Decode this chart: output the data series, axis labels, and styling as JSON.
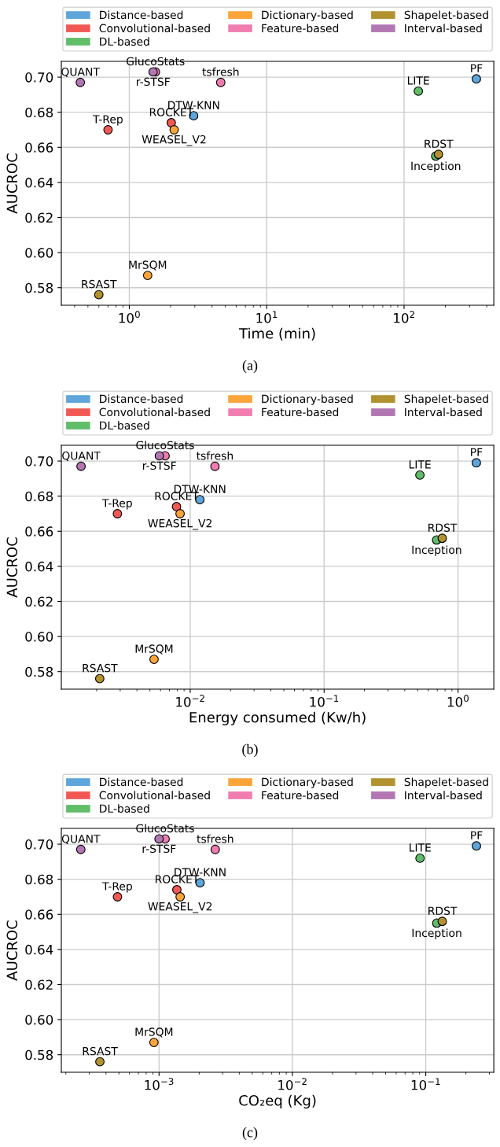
{
  "chart_data": [
    {
      "type": "scatter",
      "xlabel": "Time (min)",
      "ylabel": "AUCROC",
      "log": "x",
      "grid": true,
      "legend": "top",
      "marker": "circle",
      "xlim": [
        0.32,
        450
      ],
      "xticks": [
        {
          "value": 1,
          "label": "10$^{0}$"
        },
        {
          "value": 10,
          "label": "10$^{1}$"
        },
        {
          "value": 100,
          "label": "10$^{2}$"
        }
      ],
      "ylim": [
        0.57,
        0.709
      ],
      "yticks": [
        {
          "value": 0.58,
          "label": "0.58"
        },
        {
          "value": 0.6,
          "label": "0.60"
        },
        {
          "value": 0.62,
          "label": "0.62"
        },
        {
          "value": 0.64,
          "label": "0.64"
        },
        {
          "value": 0.66,
          "label": "0.66"
        },
        {
          "value": 0.68,
          "label": "0.68"
        },
        {
          "value": 0.7,
          "label": "0.70"
        }
      ],
      "series": [
        {
          "name": "Distance-based",
          "color": "#5da5da",
          "x": [
            2.94,
            336
          ],
          "values": [
            0.678,
            0.699
          ]
        },
        {
          "name": "Convolutional-based",
          "color": "#f15854",
          "x": [
            2.02,
            0.7
          ],
          "values": [
            0.674,
            0.67
          ]
        },
        {
          "name": "DL-based",
          "color": "#60bd68",
          "x": [
            127,
            170
          ],
          "values": [
            0.692,
            0.655
          ]
        },
        {
          "name": "Dictionary-based",
          "color": "#faa43a",
          "x": [
            2.12,
            1.36
          ],
          "values": [
            0.67,
            0.587
          ]
        },
        {
          "name": "Feature-based",
          "color": "#f17cb0",
          "x": [
            1.55,
            4.63
          ],
          "values": [
            0.703,
            0.697
          ]
        },
        {
          "name": "Shapelet-based",
          "color": "#b2912f",
          "x": [
            178,
            0.6
          ],
          "values": [
            0.656,
            0.576
          ]
        },
        {
          "name": "Interval-based",
          "color": "#b276b2",
          "x": [
            0.44,
            1.49
          ],
          "values": [
            0.697,
            0.703
          ]
        }
      ],
      "annotations": [
        {
          "text": "QUANT",
          "x": 0.44,
          "y": 0.697
        },
        {
          "text": "GlucoStats",
          "x": 1.55,
          "y": 0.703
        },
        {
          "text": "r-STSF",
          "x": 1.49,
          "y": 0.703
        },
        {
          "text": "tsfresh",
          "x": 4.63,
          "y": 0.697
        },
        {
          "text": "PF",
          "x": 336,
          "y": 0.699
        },
        {
          "text": "LITE",
          "x": 127,
          "y": 0.692
        },
        {
          "text": "DTW-KNN",
          "x": 2.94,
          "y": 0.678
        },
        {
          "text": "ROCKET",
          "x": 2.02,
          "y": 0.674
        },
        {
          "text": "WEASEL_V2",
          "x": 2.12,
          "y": 0.67
        },
        {
          "text": "T-Rep",
          "x": 0.7,
          "y": 0.67
        },
        {
          "text": "RDST",
          "x": 178,
          "y": 0.656
        },
        {
          "text": "Inception",
          "x": 170,
          "y": 0.655
        },
        {
          "text": "MrSQM",
          "x": 1.36,
          "y": 0.587
        },
        {
          "text": "RSAST",
          "x": 0.6,
          "y": 0.576
        },
        "(a)"
      ]
    },
    {
      "type": "scatter",
      "xlabel": "Energy consumed (Kw/h)",
      "ylabel": "AUCROC",
      "log": "x",
      "grid": true,
      "legend": "top",
      "marker": "circle",
      "xlim": [
        0.00109,
        1.85
      ],
      "xticks": [
        {
          "value": 0.01,
          "label": "10$^{−2}$"
        },
        {
          "value": 0.1,
          "label": "10$^{−1}$"
        },
        {
          "value": 1,
          "label": "10$^{0}$"
        }
      ],
      "ylim": [
        0.57,
        0.709
      ],
      "yticks": [
        {
          "value": 0.58,
          "label": "0.58"
        },
        {
          "value": 0.6,
          "label": "0.60"
        },
        {
          "value": 0.62,
          "label": "0.62"
        },
        {
          "value": 0.64,
          "label": "0.64"
        },
        {
          "value": 0.66,
          "label": "0.66"
        },
        {
          "value": 0.68,
          "label": "0.68"
        },
        {
          "value": 0.7,
          "label": "0.70"
        }
      ],
      "series": [
        {
          "name": "Distance-based",
          "color": "#5da5da",
          "x": [
            0.0118,
            1.37
          ],
          "values": [
            0.678,
            0.699
          ]
        },
        {
          "name": "Convolutional-based",
          "color": "#f15854",
          "x": [
            0.0079,
            0.00286
          ],
          "values": [
            0.674,
            0.67
          ]
        },
        {
          "name": "DL-based",
          "color": "#60bd68",
          "x": [
            0.519,
            0.692
          ],
          "values": [
            0.692,
            0.655
          ]
        },
        {
          "name": "Dictionary-based",
          "color": "#faa43a",
          "x": [
            0.0084,
            0.00537
          ],
          "values": [
            0.67,
            0.587
          ]
        },
        {
          "name": "Feature-based",
          "color": "#f17cb0",
          "x": [
            0.00649,
            0.0153
          ],
          "values": [
            0.703,
            0.697
          ]
        },
        {
          "name": "Shapelet-based",
          "color": "#b2912f",
          "x": [
            0.762,
            0.00211
          ],
          "values": [
            0.656,
            0.576
          ]
        },
        {
          "name": "Interval-based",
          "color": "#b276b2",
          "x": [
            0.00153,
            0.00588
          ],
          "values": [
            0.697,
            0.703
          ]
        }
      ],
      "annotations": [
        {
          "text": "QUANT",
          "x": 0.00153,
          "y": 0.697
        },
        {
          "text": "GlucoStats",
          "x": 0.00649,
          "y": 0.703
        },
        {
          "text": "r-STSF",
          "x": 0.00588,
          "y": 0.703
        },
        {
          "text": "tsfresh",
          "x": 0.0153,
          "y": 0.697
        },
        {
          "text": "PF",
          "x": 1.37,
          "y": 0.699
        },
        {
          "text": "LITE",
          "x": 0.519,
          "y": 0.692
        },
        {
          "text": "DTW-KNN",
          "x": 0.0118,
          "y": 0.678
        },
        {
          "text": "ROCKET",
          "x": 0.0079,
          "y": 0.674
        },
        {
          "text": "WEASEL_V2",
          "x": 0.0084,
          "y": 0.67
        },
        {
          "text": "T-Rep",
          "x": 0.00286,
          "y": 0.67
        },
        {
          "text": "RDST",
          "x": 0.762,
          "y": 0.656
        },
        {
          "text": "Inception",
          "x": 0.692,
          "y": 0.655
        },
        {
          "text": "MrSQM",
          "x": 0.00537,
          "y": 0.587
        },
        {
          "text": "RSAST",
          "x": 0.00211,
          "y": 0.576
        },
        "(b)"
      ]
    },
    {
      "type": "scatter",
      "xlabel": "CO₂eq (Kg)",
      "ylabel": "AUCROC",
      "log": "x",
      "grid": true,
      "legend": "top",
      "marker": "circle",
      "xlim": [
        0.000185,
        0.324
      ],
      "xticks": [
        {
          "value": 0.001,
          "label": "10$^{−3}$"
        },
        {
          "value": 0.01,
          "label": "10$^{−2}$"
        },
        {
          "value": 0.1,
          "label": "10$^{−1}$"
        }
      ],
      "ylim": [
        0.57,
        0.709
      ],
      "yticks": [
        {
          "value": 0.58,
          "label": "0.58"
        },
        {
          "value": 0.6,
          "label": "0.60"
        },
        {
          "value": 0.62,
          "label": "0.62"
        },
        {
          "value": 0.64,
          "label": "0.64"
        },
        {
          "value": 0.66,
          "label": "0.66"
        },
        {
          "value": 0.68,
          "label": "0.68"
        },
        {
          "value": 0.7,
          "label": "0.70"
        }
      ],
      "series": [
        {
          "name": "Distance-based",
          "color": "#5da5da",
          "x": [
            0.00203,
            0.24
          ],
          "values": [
            0.678,
            0.699
          ]
        },
        {
          "name": "Convolutional-based",
          "color": "#f15854",
          "x": [
            0.00136,
            0.000488
          ],
          "values": [
            0.674,
            0.67
          ]
        },
        {
          "name": "DL-based",
          "color": "#60bd68",
          "x": [
            0.0906,
            0.121
          ],
          "values": [
            0.692,
            0.655
          ]
        },
        {
          "name": "Dictionary-based",
          "color": "#faa43a",
          "x": [
            0.00144,
            0.000916
          ],
          "values": [
            0.67,
            0.587
          ]
        },
        {
          "name": "Feature-based",
          "color": "#f17cb0",
          "x": [
            0.00111,
            0.00264
          ],
          "values": [
            0.703,
            0.697
          ]
        },
        {
          "name": "Shapelet-based",
          "color": "#b2912f",
          "x": [
            0.133,
            0.00036
          ],
          "values": [
            0.656,
            0.576
          ]
        },
        {
          "name": "Interval-based",
          "color": "#b276b2",
          "x": [
            0.000259,
            0.001
          ],
          "values": [
            0.697,
            0.703
          ]
        }
      ],
      "annotations": [
        {
          "text": "QUANT",
          "x": 0.000259,
          "y": 0.697
        },
        {
          "text": "GlucoStats",
          "x": 0.00111,
          "y": 0.703
        },
        {
          "text": "r-STSF",
          "x": 0.001,
          "y": 0.703
        },
        {
          "text": "tsfresh",
          "x": 0.00264,
          "y": 0.697
        },
        {
          "text": "PF",
          "x": 0.24,
          "y": 0.699
        },
        {
          "text": "LITE",
          "x": 0.0906,
          "y": 0.692
        },
        {
          "text": "DTW-KNN",
          "x": 0.00203,
          "y": 0.678
        },
        {
          "text": "ROCKET",
          "x": 0.00136,
          "y": 0.674
        },
        {
          "text": "WEASEL_V2",
          "x": 0.00144,
          "y": 0.67
        },
        {
          "text": "T-Rep",
          "x": 0.000488,
          "y": 0.67
        },
        {
          "text": "RDST",
          "x": 0.133,
          "y": 0.656
        },
        {
          "text": "Inception",
          "x": 0.121,
          "y": 0.655
        },
        {
          "text": "MrSQM",
          "x": 0.000916,
          "y": 0.587
        },
        {
          "text": "RSAST",
          "x": 0.00036,
          "y": 0.576
        },
        "(c)"
      ]
    }
  ]
}
